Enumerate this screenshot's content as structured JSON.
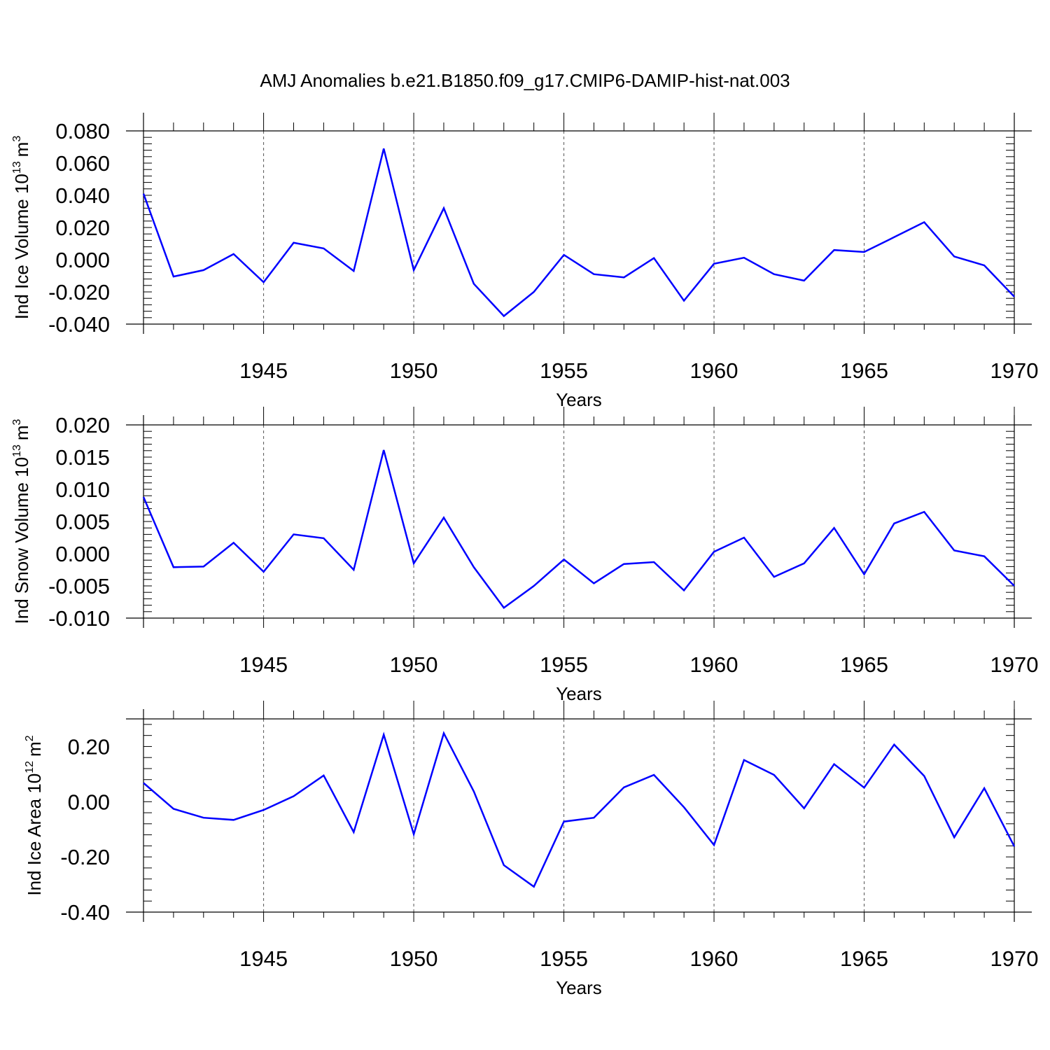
{
  "figure": {
    "title": "AMJ Anomalies b.e21.B1850.f09_g17.CMIP6-DAMIP-hist-nat.003"
  },
  "colors": {
    "line": "#0000ff",
    "axis": "#000000",
    "grid": "#555555"
  },
  "chart_data": [
    {
      "type": "line",
      "title": "AMJ Anomalies b.e21.B1850.f09_g17.CMIP6-DAMIP-hist-nat.003",
      "xlabel": "Years",
      "ylabel": "Ind Ice Volume 10",
      "ylabel_exp": "13",
      "ylabel_unit": "m",
      "ylabel_unit_exp": "3",
      "xlim": [
        1941,
        1970
      ],
      "ylim": [
        -0.04,
        0.08
      ],
      "xticks": [
        1945,
        1950,
        1955,
        1960,
        1965,
        1970
      ],
      "yticks": [
        -0.04,
        -0.02,
        0.0,
        0.02,
        0.04,
        0.06,
        0.08
      ],
      "ytick_labels": [
        "-0.040",
        "-0.020",
        "0.000",
        "0.020",
        "0.040",
        "0.060",
        "0.080"
      ],
      "grid": "dashed vertical at labeled years",
      "x": [
        1941,
        1942,
        1943,
        1944,
        1945,
        1946,
        1947,
        1948,
        1949,
        1950,
        1951,
        1952,
        1953,
        1954,
        1955,
        1956,
        1957,
        1958,
        1959,
        1960,
        1961,
        1962,
        1963,
        1964,
        1965,
        1966,
        1967,
        1968,
        1969,
        1970
      ],
      "series": [
        {
          "values": [
            0.041,
            -0.0105,
            -0.0065,
            0.0035,
            -0.014,
            0.0105,
            0.007,
            -0.007,
            0.069,
            -0.0065,
            0.032,
            -0.015,
            -0.035,
            -0.02,
            0.003,
            -0.009,
            -0.011,
            0.001,
            -0.0255,
            -0.0025,
            0.0012,
            -0.009,
            -0.013,
            0.006,
            0.0048,
            0.014,
            0.0233,
            0.002,
            -0.0035,
            -0.023
          ]
        }
      ]
    },
    {
      "type": "line",
      "xlabel": "Years",
      "ylabel": "Ind Snow Volume 10",
      "ylabel_exp": "13",
      "ylabel_unit": "m",
      "ylabel_unit_exp": "3",
      "xlim": [
        1941,
        1970
      ],
      "ylim": [
        -0.01,
        0.02
      ],
      "xticks": [
        1945,
        1950,
        1955,
        1960,
        1965,
        1970
      ],
      "yticks": [
        -0.01,
        -0.005,
        0.0,
        0.005,
        0.01,
        0.015,
        0.02
      ],
      "ytick_labels": [
        "-0.010",
        "-0.005",
        "0.000",
        "0.005",
        "0.010",
        "0.015",
        "0.020"
      ],
      "grid": "dashed vertical at labeled years",
      "x": [
        1941,
        1942,
        1943,
        1944,
        1945,
        1946,
        1947,
        1948,
        1949,
        1950,
        1951,
        1952,
        1953,
        1954,
        1955,
        1956,
        1957,
        1958,
        1959,
        1960,
        1961,
        1962,
        1963,
        1964,
        1965,
        1966,
        1967,
        1968,
        1969,
        1970
      ],
      "series": [
        {
          "values": [
            0.0088,
            -0.0021,
            -0.002,
            0.0017,
            -0.0028,
            0.003,
            0.0024,
            -0.0025,
            0.0161,
            -0.0015,
            0.0056,
            -0.0021,
            -0.0084,
            -0.005,
            -0.0009,
            -0.0046,
            -0.0016,
            -0.0013,
            -0.0057,
            0.0003,
            0.0025,
            -0.0036,
            -0.0015,
            0.004,
            -0.0032,
            0.0047,
            0.0065,
            0.0005,
            -0.0004,
            -0.005
          ]
        }
      ]
    },
    {
      "type": "line",
      "xlabel": "Years",
      "ylabel": "Ind Ice Area 10",
      "ylabel_exp": "12",
      "ylabel_unit": "m",
      "ylabel_unit_exp": "2",
      "xlim": [
        1941,
        1970
      ],
      "ylim": [
        -0.4,
        0.3
      ],
      "xticks": [
        1945,
        1950,
        1955,
        1960,
        1965,
        1970
      ],
      "yticks": [
        -0.4,
        -0.2,
        0.0,
        0.2
      ],
      "ytick_labels": [
        "-0.40",
        "-0.20",
        "0.00",
        "0.20"
      ],
      "grid": "dashed vertical at labeled years",
      "x": [
        1941,
        1942,
        1943,
        1944,
        1945,
        1946,
        1947,
        1948,
        1949,
        1950,
        1951,
        1952,
        1953,
        1954,
        1955,
        1956,
        1957,
        1958,
        1959,
        1960,
        1961,
        1962,
        1963,
        1964,
        1965,
        1966,
        1967,
        1968,
        1969,
        1970
      ],
      "series": [
        {
          "values": [
            0.068,
            -0.026,
            -0.058,
            -0.066,
            -0.03,
            0.02,
            0.095,
            -0.11,
            0.243,
            -0.118,
            0.248,
            0.037,
            -0.23,
            -0.308,
            -0.072,
            -0.058,
            0.052,
            0.097,
            -0.02,
            -0.157,
            0.151,
            0.097,
            -0.024,
            0.136,
            0.051,
            0.207,
            0.093,
            -0.129,
            0.049,
            -0.162
          ]
        }
      ]
    }
  ]
}
